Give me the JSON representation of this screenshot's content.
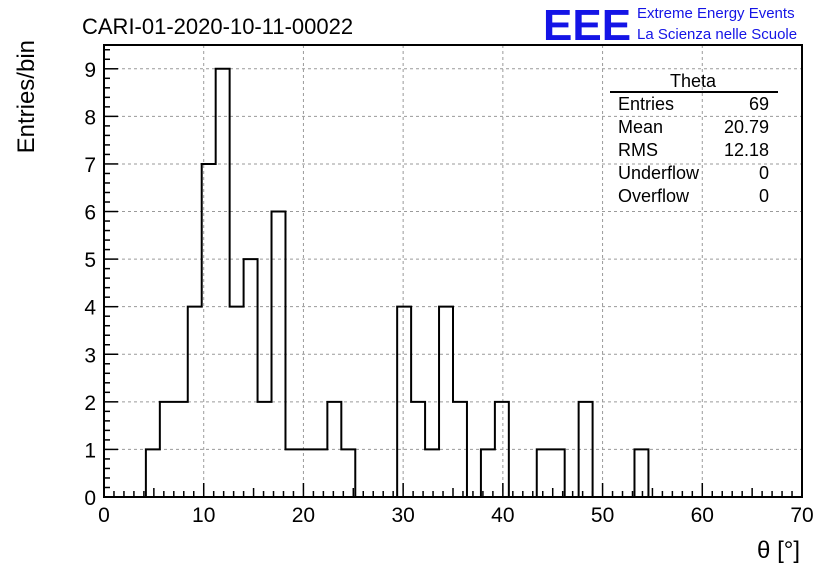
{
  "header": {
    "title": "CARI-01-2020-10-11-00022",
    "logo_text": "EEE",
    "logo_line1": "Extreme Energy Events",
    "logo_line2": "La Scienza nelle Scuole",
    "logo_color": "#1414e6"
  },
  "stats": {
    "name": "Theta",
    "rows": [
      {
        "label": "Entries",
        "value": "69"
      },
      {
        "label": "Mean",
        "value": "20.79"
      },
      {
        "label": "RMS",
        "value": "12.18"
      },
      {
        "label": "Underflow",
        "value": "0"
      },
      {
        "label": "Overflow",
        "value": "0"
      }
    ]
  },
  "chart_data": {
    "type": "bar",
    "style": "step-histogram",
    "title": "CARI-01-2020-10-11-00022",
    "xlabel": "θ [°]",
    "ylabel": "Entries/bin",
    "xlim": [
      0,
      70
    ],
    "ylim": [
      0,
      9.5
    ],
    "bin_width": 1.4,
    "x_ticks": [
      0,
      10,
      20,
      30,
      40,
      50,
      60,
      70
    ],
    "y_ticks": [
      0,
      1,
      2,
      3,
      4,
      5,
      6,
      7,
      8,
      9
    ],
    "grid": true,
    "values": [
      0,
      0,
      0,
      1,
      2,
      2,
      4,
      7,
      9,
      4,
      5,
      2,
      6,
      1,
      1,
      1,
      2,
      1,
      0,
      0,
      0,
      4,
      2,
      1,
      4,
      2,
      0,
      1,
      2,
      0,
      0,
      1,
      1,
      0,
      2,
      0,
      0,
      0,
      1,
      0,
      0,
      0,
      0,
      0,
      0,
      0,
      0,
      0,
      0,
      0
    ],
    "line_color": "#000000"
  }
}
